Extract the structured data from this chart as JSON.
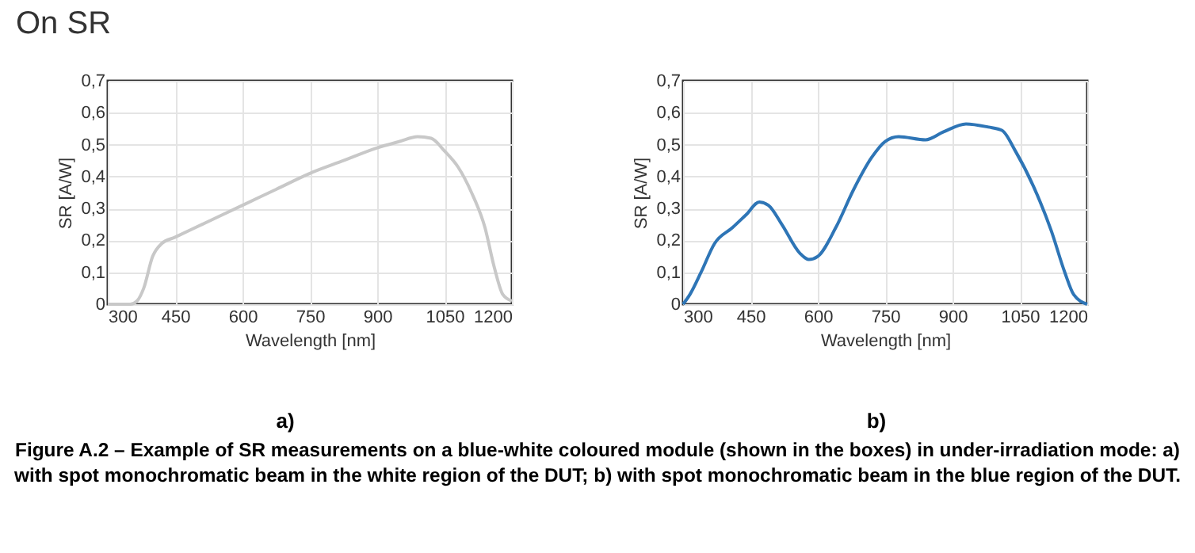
{
  "chart_data": [
    {
      "type": "line",
      "title": "On SR",
      "xlabel": "Wavelength [nm]",
      "ylabel": "SR [A/W]",
      "annotations": [
        "a)"
      ],
      "grid": true,
      "xlim": [
        300,
        1200
      ],
      "ylim": [
        0,
        0.7
      ],
      "xticks": [
        300,
        450,
        600,
        750,
        900,
        1050,
        1200
      ],
      "yticks": [
        {
          "value": 0,
          "label": "0"
        },
        {
          "value": 0.1,
          "label": "0,1"
        },
        {
          "value": 0.2,
          "label": "0,2"
        },
        {
          "value": 0.3,
          "label": "0,3"
        },
        {
          "value": 0.4,
          "label": "0,4"
        },
        {
          "value": 0.5,
          "label": "0,5"
        },
        {
          "value": 0.6,
          "label": "0,6"
        },
        {
          "value": 0.7,
          "label": "0,7"
        }
      ],
      "x": [
        300,
        350,
        365,
        380,
        400,
        420,
        450,
        525,
        600,
        675,
        750,
        825,
        900,
        950,
        990,
        1020,
        1050,
        1080,
        1110,
        1140,
        1160,
        1180,
        1200
      ],
      "series": [
        {
          "color": "#c8c8c8",
          "values": [
            0,
            0,
            0.01,
            0.05,
            0.15,
            0.19,
            0.21,
            0.26,
            0.31,
            0.36,
            0.41,
            0.45,
            0.49,
            0.51,
            0.525,
            0.52,
            0.48,
            0.43,
            0.35,
            0.24,
            0.12,
            0.03,
            0.01
          ]
        }
      ]
    },
    {
      "type": "line",
      "xlabel": "Wavelength [nm]",
      "ylabel": "SR [A/W]",
      "annotations": [
        "b)",
        "Figure A.2 – Example of SR measurements on a blue-white coloured module (shown in the boxes) in under-irradiation mode: a) with spot monochromatic beam in the white region of the DUT; b) with spot monochromatic beam in the blue region of the DUT."
      ],
      "grid": true,
      "xlim": [
        300,
        1200
      ],
      "ylim": [
        0,
        0.7
      ],
      "xticks": [
        300,
        450,
        600,
        750,
        900,
        1050,
        1200
      ],
      "yticks": [
        {
          "value": 0,
          "label": "0"
        },
        {
          "value": 0.1,
          "label": "0,1"
        },
        {
          "value": 0.2,
          "label": "0,2"
        },
        {
          "value": 0.3,
          "label": "0,3"
        },
        {
          "value": 0.4,
          "label": "0,4"
        },
        {
          "value": 0.5,
          "label": "0,5"
        },
        {
          "value": 0.6,
          "label": "0,6"
        },
        {
          "value": 0.7,
          "label": "0,7"
        }
      ],
      "x": [
        300,
        315,
        340,
        370,
        410,
        440,
        470,
        490,
        520,
        560,
        580,
        600,
        640,
        680,
        720,
        750,
        780,
        840,
        880,
        930,
        980,
        1010,
        1040,
        1080,
        1120,
        1150,
        1170,
        1200
      ],
      "series": [
        {
          "color": "#2e75b6",
          "values": [
            0,
            0.03,
            0.1,
            0.19,
            0.24,
            0.28,
            0.32,
            0.31,
            0.25,
            0.16,
            0.14,
            0.15,
            0.24,
            0.36,
            0.46,
            0.51,
            0.525,
            0.515,
            0.54,
            0.565,
            0.555,
            0.545,
            0.48,
            0.37,
            0.23,
            0.1,
            0.03,
            0
          ]
        }
      ]
    }
  ]
}
